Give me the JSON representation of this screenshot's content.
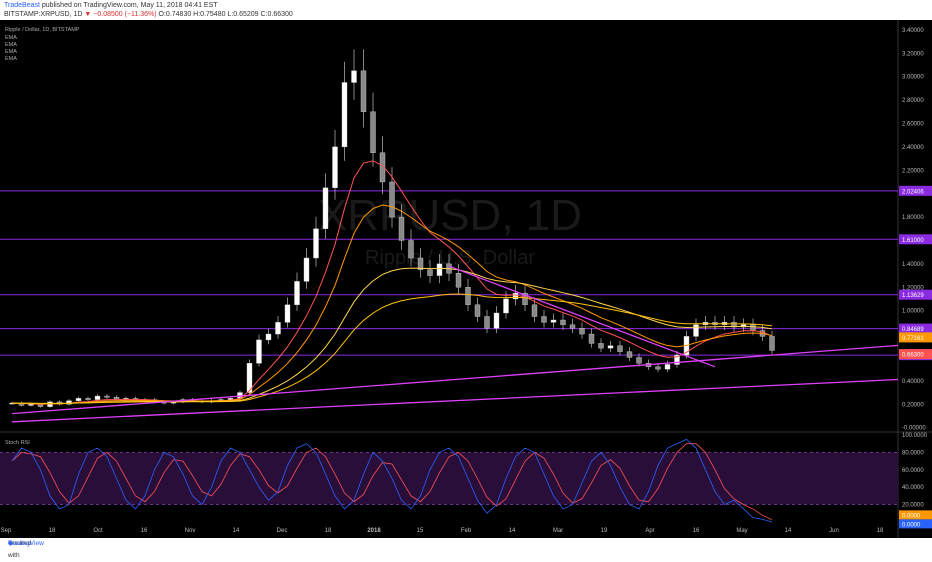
{
  "header": {
    "author": "TradeBeast",
    "published": "published on TradingView.com, May 11, 2018 04:41 EST",
    "symbol": "BITSTAMP:XRPUSD, 1D",
    "change": "▼ −0.08500 (−11.36%)",
    "ohlc": "O:0.74830 H:0.75480 L:0.65209 C:0.66300"
  },
  "legend": {
    "title": "Ripple / Dollar, 1D, BITSTAMP",
    "indicators": [
      "EMA",
      "EMA",
      "EMA",
      "EMA"
    ]
  },
  "watermark": {
    "symbol": "XRPUSD, 1D",
    "name": "Ripple / U.S. Dollar"
  },
  "footer": {
    "created": "Created with",
    "brand": "TradingView"
  },
  "colors": {
    "background": "#000000",
    "hline": "#8a2be2",
    "trendline": "#e040fb",
    "ema_fast": "#ff5252",
    "ema_mid": "#ff9800",
    "ema_slow": "#ffd54f",
    "ema_long": "#ffc107",
    "stoch_k": "#2962ff",
    "stoch_d": "#ff5252"
  },
  "chart_data": [
    {
      "type": "line",
      "title": "",
      "y_ticks": [
        "3.40000",
        "3.20000",
        "3.00000",
        "2.80000",
        "2.60000",
        "2.40000",
        "2.20000",
        "2.00000",
        "1.80000",
        "1.60000",
        "1.40000",
        "1.20000",
        "1.00000",
        "0.80000",
        "0.60000",
        "0.40000",
        "0.20000",
        "-0.00000"
      ],
      "ylim": [
        -0.02,
        3.45
      ],
      "x_ticks": [
        "Sep",
        "18",
        "Oct",
        "16",
        "Nov",
        "14",
        "Dec",
        "18",
        "2018",
        "15",
        "Feb",
        "14",
        "Mar",
        "19",
        "Apr",
        "16",
        "May",
        "14",
        "Jun",
        "18"
      ],
      "x_tick_bold": "2018",
      "horizontal_levels": [
        {
          "value": 2.02406,
          "label": "2.02406"
        },
        {
          "value": 1.61,
          "label": "1.61000"
        },
        {
          "value": 1.13629,
          "label": "1.13629"
        },
        {
          "value": 0.84689,
          "label": "0.84689"
        },
        {
          "value": 0.61985,
          "label": "0.61985"
        }
      ],
      "price_tags": [
        {
          "value": 0.77161,
          "label": "0.77161",
          "color": "#ff9800"
        },
        {
          "value": 0.663,
          "label": "0.66300",
          "color": "#ff5252"
        }
      ],
      "series": [
        {
          "name": "XRPUSD",
          "values": [
            0.21,
            0.19,
            0.2,
            0.18,
            0.22,
            0.2,
            0.23,
            0.25,
            0.24,
            0.27,
            0.26,
            0.24,
            0.25,
            0.23,
            0.24,
            0.22,
            0.21,
            0.22,
            0.24,
            0.23,
            0.22,
            0.23,
            0.24,
            0.25,
            0.3,
            0.55,
            0.75,
            0.8,
            0.9,
            1.05,
            1.25,
            1.45,
            1.7,
            2.05,
            2.4,
            2.95,
            3.05,
            2.7,
            2.35,
            2.1,
            1.8,
            1.6,
            1.45,
            1.35,
            1.3,
            1.4,
            1.32,
            1.2,
            1.05,
            0.95,
            0.85,
            0.98,
            1.1,
            1.15,
            1.05,
            0.95,
            0.9,
            0.92,
            0.88,
            0.85,
            0.8,
            0.72,
            0.68,
            0.7,
            0.65,
            0.6,
            0.55,
            0.52,
            0.5,
            0.54,
            0.62,
            0.78,
            0.88,
            0.9,
            0.88,
            0.9,
            0.86,
            0.88,
            0.83,
            0.78,
            0.66
          ]
        }
      ],
      "trendlines": [
        {
          "from": [
            0,
            0.12
          ],
          "to": [
            80,
            0.62
          ]
        },
        {
          "from": [
            0,
            0.05
          ],
          "to": [
            80,
            0.36
          ]
        },
        {
          "from": [
            46,
            1.38
          ],
          "to": [
            74,
            0.52
          ]
        }
      ]
    },
    {
      "type": "line",
      "title": "Stoch RSI",
      "y_ticks": [
        "100.0000",
        "80.0000",
        "60.0000",
        "40.0000",
        "20.0000",
        "0.0000"
      ],
      "ylim": [
        0,
        100
      ],
      "bands": [
        20,
        80
      ],
      "value_tags": [
        "0.0000",
        "0.0000"
      ],
      "series": [
        {
          "name": "%K",
          "values": [
            70,
            85,
            80,
            60,
            30,
            15,
            20,
            55,
            80,
            85,
            75,
            50,
            25,
            15,
            30,
            60,
            80,
            75,
            55,
            30,
            20,
            40,
            70,
            85,
            80,
            60,
            40,
            25,
            35,
            65,
            85,
            90,
            80,
            55,
            30,
            15,
            25,
            55,
            80,
            70,
            50,
            25,
            15,
            30,
            60,
            80,
            85,
            75,
            50,
            25,
            10,
            20,
            50,
            75,
            85,
            80,
            55,
            30,
            15,
            20,
            45,
            70,
            80,
            65,
            40,
            20,
            15,
            35,
            65,
            85,
            90,
            95,
            85,
            60,
            35,
            20,
            25,
            15,
            5,
            3,
            0
          ]
        }
      ]
    }
  ]
}
